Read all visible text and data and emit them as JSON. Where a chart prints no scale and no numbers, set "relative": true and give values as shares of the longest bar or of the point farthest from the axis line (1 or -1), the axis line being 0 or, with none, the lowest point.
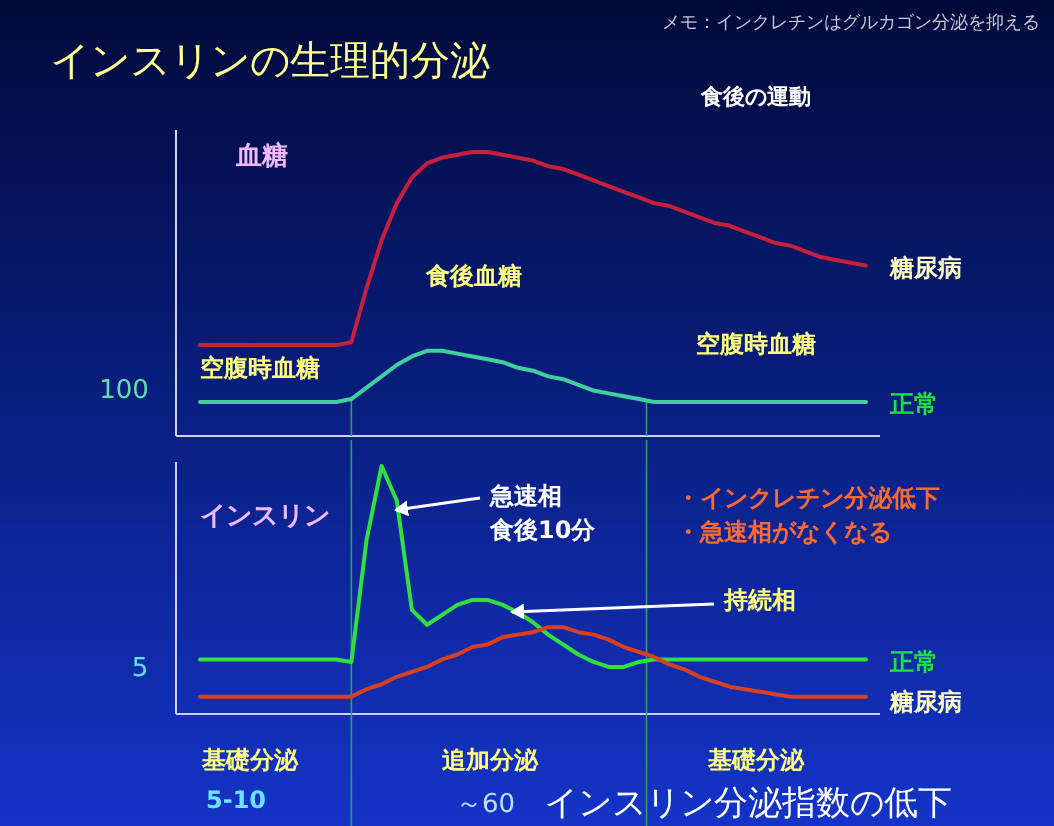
{
  "chart_data": [
    {
      "type": "line",
      "title": "インスリンの生理的分泌",
      "ylabel": "血糖",
      "relative": true,
      "annotations": [
        "メモ：インクレチンはグルカゴン分泌を抑える",
        "食後の運動",
        "食後血糖",
        "空腹時血糖",
        "空腹時血糖",
        "100"
      ],
      "categories": [
        null,
        null,
        null,
        null,
        null,
        null,
        null,
        null,
        null,
        null,
        null,
        null,
        null,
        null,
        null,
        null,
        null,
        null,
        null,
        null,
        null,
        null,
        null,
        null,
        null,
        null,
        null,
        null,
        null,
        null,
        null,
        null,
        null,
        null,
        null,
        null,
        null,
        null,
        null,
        null,
        null,
        null,
        null,
        null,
        null
      ],
      "series": [
        {
          "name": "糖尿病",
          "color": "#c8203c",
          "values": [
            0.32,
            0.32,
            0.32,
            0.32,
            0.32,
            0.32,
            0.32,
            0.32,
            0.32,
            0.32,
            0.33,
            0.52,
            0.69,
            0.82,
            0.91,
            0.96,
            0.98,
            0.99,
            1.0,
            1.0,
            0.99,
            0.98,
            0.97,
            0.95,
            0.94,
            0.92,
            0.9,
            0.88,
            0.86,
            0.84,
            0.82,
            0.81,
            0.79,
            0.77,
            0.75,
            0.74,
            0.72,
            0.7,
            0.68,
            0.67,
            0.65,
            0.63,
            0.62,
            0.61,
            0.6
          ]
        },
        {
          "name": "正常",
          "color": "#40d0a0",
          "values": [
            0.12,
            0.12,
            0.12,
            0.12,
            0.12,
            0.12,
            0.12,
            0.12,
            0.12,
            0.12,
            0.13,
            0.17,
            0.21,
            0.25,
            0.28,
            0.3,
            0.3,
            0.29,
            0.28,
            0.27,
            0.26,
            0.24,
            0.23,
            0.21,
            0.2,
            0.18,
            0.16,
            0.15,
            0.14,
            0.13,
            0.12,
            0.12,
            0.12,
            0.12,
            0.12,
            0.12,
            0.12,
            0.12,
            0.12,
            0.12,
            0.12,
            0.12,
            0.12,
            0.12,
            0.12
          ]
        }
      ]
    },
    {
      "type": "line",
      "ylabel": "インスリン",
      "relative": true,
      "annotations": [
        "急速相",
        "食後10分",
        "持続相",
        "・インクレチン分泌低下",
        "・急速相がなくなる",
        "5",
        "基礎分泌",
        "追加分泌",
        "基礎分泌",
        "5-10",
        "～60",
        "インスリン分泌指数の低下"
      ],
      "categories": [
        null,
        null,
        null,
        null,
        null,
        null,
        null,
        null,
        null,
        null,
        null,
        null,
        null,
        null,
        null,
        null,
        null,
        null,
        null,
        null,
        null,
        null,
        null,
        null,
        null,
        null,
        null,
        null,
        null,
        null,
        null,
        null,
        null,
        null,
        null,
        null,
        null,
        null,
        null,
        null,
        null,
        null,
        null,
        null,
        null
      ],
      "series": [
        {
          "name": "正常",
          "color": "#30e040",
          "values": [
            0.22,
            0.22,
            0.22,
            0.22,
            0.22,
            0.22,
            0.22,
            0.22,
            0.22,
            0.22,
            0.21,
            0.7,
            1.0,
            0.86,
            0.42,
            0.36,
            0.4,
            0.44,
            0.46,
            0.46,
            0.44,
            0.41,
            0.37,
            0.32,
            0.28,
            0.24,
            0.21,
            0.19,
            0.19,
            0.21,
            0.22,
            0.22,
            0.22,
            0.22,
            0.22,
            0.22,
            0.22,
            0.22,
            0.22,
            0.22,
            0.22,
            0.22,
            0.22,
            0.22,
            0.22
          ]
        },
        {
          "name": "糖尿病",
          "color": "#d84020",
          "values": [
            0.07,
            0.07,
            0.07,
            0.07,
            0.07,
            0.07,
            0.07,
            0.07,
            0.07,
            0.07,
            0.07,
            0.1,
            0.12,
            0.15,
            0.17,
            0.19,
            0.22,
            0.24,
            0.27,
            0.28,
            0.31,
            0.32,
            0.33,
            0.35,
            0.35,
            0.33,
            0.32,
            0.3,
            0.27,
            0.25,
            0.23,
            0.2,
            0.18,
            0.15,
            0.13,
            0.11,
            0.1,
            0.09,
            0.08,
            0.07,
            0.07,
            0.07,
            0.07,
            0.07,
            0.07
          ]
        }
      ]
    }
  ]
}
